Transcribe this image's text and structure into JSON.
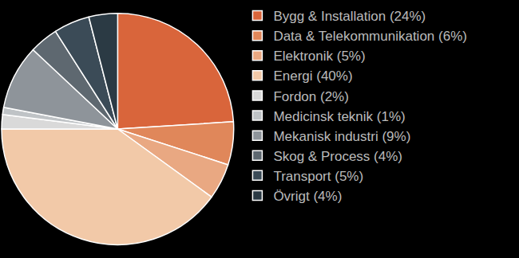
{
  "chart_data": {
    "type": "pie",
    "categories": [
      "Bygg & Installation (24%)",
      "Data & Telekommunikation (6%)",
      "Elektronik (5%)",
      "Energi (40%)",
      "Fordon (2%)",
      "Medicinsk teknik (1%)",
      "Mekanisk industri (9%)",
      "Skog & Process (4%)",
      "Transport (5%)",
      "Övrigt (4%)"
    ],
    "values": [
      24,
      6,
      5,
      40,
      2,
      1,
      9,
      4,
      5,
      4
    ],
    "colors": [
      "#d9653b",
      "#e0875a",
      "#e9a882",
      "#f2c9a8",
      "#d9d9d9",
      "#bfc3c6",
      "#8e949a",
      "#5e6870",
      "#3b4b57",
      "#2b3a44"
    ],
    "legend": "right"
  }
}
